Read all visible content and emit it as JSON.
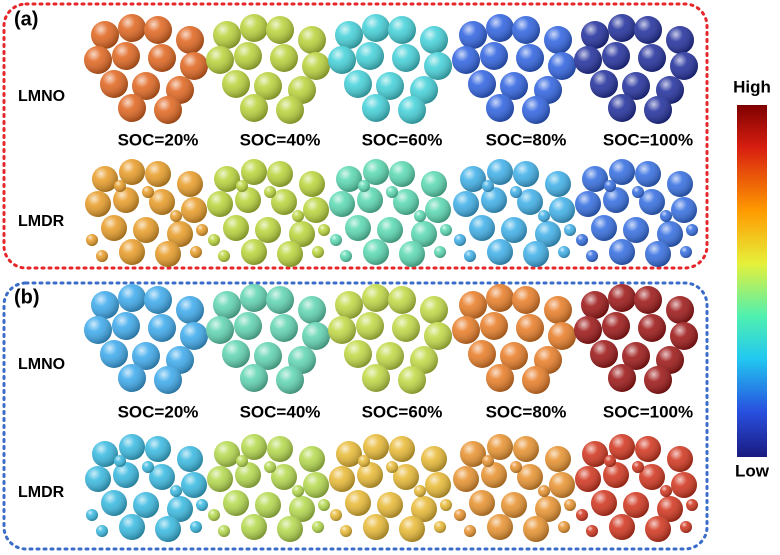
{
  "panels": [
    {
      "label": "(a)",
      "rows": [
        {
          "label": "LMNO"
        },
        {
          "label": "LMDR"
        }
      ],
      "soc_labels": [
        "SOC=20%",
        "SOC=40%",
        "SOC=60%",
        "SOC=80%",
        "SOC=100%"
      ]
    },
    {
      "label": "(b)",
      "rows": [
        {
          "label": "LMNO"
        },
        {
          "label": "LMDR"
        }
      ],
      "soc_labels": [
        "SOC=20%",
        "SOC=40%",
        "SOC=60%",
        "SOC=80%",
        "SOC=100%"
      ]
    }
  ],
  "colorbar": {
    "high": "High",
    "low": "Low"
  }
}
